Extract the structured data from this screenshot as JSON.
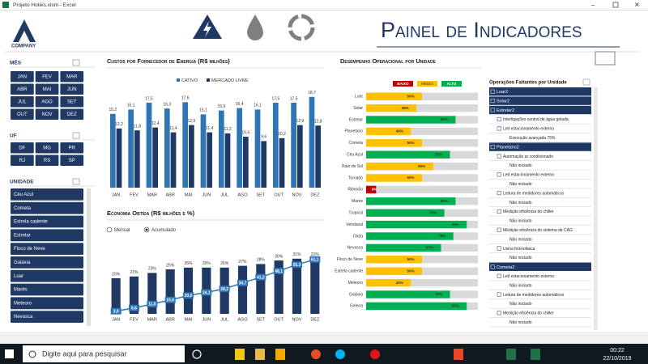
{
  "window": {
    "title": "Projeto Hotéis.xlsm - Excel"
  },
  "header": {
    "logo": "COMPANY",
    "title": "Painel de Indicadores"
  },
  "slicers": [
    {
      "title": "MÊS",
      "items": [
        "JAN",
        "FEV",
        "MAR",
        "ABR",
        "MAI",
        "JUN",
        "JUL",
        "AGO",
        "SET",
        "OUT",
        "NOV",
        "DEZ"
      ]
    },
    {
      "title": "UF",
      "items": [
        "DF",
        "MG",
        "PR",
        "RJ",
        "RS",
        "SP"
      ]
    },
    {
      "title": "UNIDADE",
      "items": [
        "Céu Azul",
        "Cometa",
        "Estrela cadente",
        "Estrelar",
        "Floco de Neve",
        "Galáxia",
        "Luar",
        "Marés",
        "Meteoro",
        "Nevasca"
      ]
    }
  ],
  "chart_data": [
    {
      "type": "bar",
      "title": "Custos por Fornecedor de Energia (R$ milhões)",
      "categories": [
        "JAN",
        "FEV",
        "MAR",
        "ABR",
        "MAI",
        "JUN",
        "JUL",
        "AGO",
        "SET",
        "OUT",
        "NOV",
        "DEZ"
      ],
      "ylim": [
        0,
        20
      ],
      "legend": "top",
      "series": [
        {
          "name": "CATIVO",
          "color": "#2e75b6",
          "values": [
            15.2,
            16.1,
            17.5,
            16.3,
            17.6,
            15.1,
            15.9,
            16.4,
            16.1,
            17.5,
            17.5,
            18.7
          ],
          "value_labels": [
            "15,2",
            "16,1",
            "17,5",
            "16,3",
            "17,6",
            "15,1",
            "15,9",
            "16,4",
            "16,1",
            "17,5",
            "17,5",
            "18,7"
          ]
        },
        {
          "name": "MERCADO LIVRE",
          "color": "#1f3864",
          "values": [
            12.2,
            11.8,
            12.4,
            11.4,
            12.9,
            11.4,
            11.2,
            10.5,
            9.6,
            10.2,
            12.9,
            12.8
          ],
          "value_labels": [
            "12,2",
            "11,8",
            "12,4",
            "11,4",
            "12,9",
            "11,4",
            "11,2",
            "10,5",
            "9,6",
            "10,2",
            "12,9",
            "12,8"
          ]
        }
      ]
    },
    {
      "type": "bar",
      "title": "Economia Obtida (R$ milhões e %)",
      "options": [
        "Mensal",
        "Acumulado"
      ],
      "selected": 1,
      "categories": [
        "JAN",
        "FEV",
        "MAR",
        "ABR",
        "MAI",
        "JUN",
        "JUL",
        "AGO",
        "SET",
        "OUT",
        "NOV",
        "DEZ"
      ],
      "ylim": [
        0,
        40
      ],
      "y2lim": [
        0,
        80
      ],
      "series": [
        {
          "type": "bar",
          "color": "#1f3864",
          "values": [
            20,
            21,
            23,
            25,
            26,
            26,
            26,
            27,
            28,
            30,
            31,
            31
          ],
          "value_labels": [
            "20%",
            "21%",
            "23%",
            "25%",
            "26%",
            "26%",
            "26%",
            "27%",
            "28%",
            "30%",
            "31%",
            "31%"
          ]
        },
        {
          "type": "line",
          "axis": "y2",
          "color": "#2e75b6",
          "values": [
            3.0,
            6.6,
            11.0,
            15.6,
            20.6,
            24.1,
            28.2,
            34.7,
            41.2,
            48.1,
            55.3,
            61.1
          ],
          "value_labels": [
            "3,0",
            "6,6",
            "11,0",
            "15,6",
            "20,6",
            "24,1",
            "28,2",
            "34,7",
            "41,2",
            "48,1",
            "55,3",
            "61,1"
          ]
        }
      ]
    },
    {
      "type": "hbar",
      "title": "Desempenho Operacional por Unidade",
      "xlim": [
        0,
        100
      ],
      "legend_items": [
        {
          "name": "BAIXO",
          "color": "#c00000"
        },
        {
          "name": "MÉDIO",
          "color": "#ffc000"
        },
        {
          "name": "ALTO",
          "color": "#00b050"
        }
      ],
      "categories": [
        "Luar",
        "Solar",
        "Estrelar",
        "Planetário",
        "Cometa",
        "Céu Azul",
        "Raio de Sol",
        "Tornado",
        "Ribeirão",
        "Marés",
        "Tropical",
        "Vendaval",
        "Onda",
        "Nevasca",
        "Floco de Neve",
        "Estrela cadente",
        "Meteoro",
        "Galáxia",
        "Geleira"
      ],
      "values": [
        50,
        45,
        80,
        40,
        50,
        75,
        60,
        50,
        9,
        80,
        70,
        90,
        78,
        67,
        50,
        50,
        40,
        75,
        90
      ],
      "value_labels": [
        "50%",
        "45%",
        "80%",
        "40%",
        "50%",
        "75%",
        "60%",
        "50%",
        "9%",
        "80%",
        "70%",
        "90%",
        "78%",
        "67%",
        "50%",
        "50%",
        "40%",
        "75%",
        "90%"
      ],
      "colors": [
        "#ffc000",
        "#ffc000",
        "#00b050",
        "#ffc000",
        "#ffc000",
        "#00b050",
        "#ffc000",
        "#ffc000",
        "#c00000",
        "#00b050",
        "#00b050",
        "#00b050",
        "#00b050",
        "#00b050",
        "#ffc000",
        "#ffc000",
        "#ffc000",
        "#00b050",
        "#00b050"
      ]
    }
  ],
  "pivot": {
    "title": "Operações Faltantes por Unidade",
    "units": [
      {
        "name": "Luar2",
        "operations": []
      },
      {
        "name": "Solar2",
        "operations": []
      },
      {
        "name": "Estrelar2",
        "operations": [
          {
            "name": "Interligações central de água gelada"
          },
          {
            "name": "Led estacionamento externo",
            "status": "Execução avançada 75%"
          }
        ]
      },
      {
        "name": "Planetário2",
        "operations": [
          {
            "name": "Automação ar condicionado",
            "status": "Não iniciado"
          },
          {
            "name": "Led estacionamento externo",
            "status": "Não iniciado"
          },
          {
            "name": "Leitura de medidores automáticos",
            "status": "Não iniciado"
          },
          {
            "name": "Medição eficiência do chiller",
            "status": "Não iniciado"
          },
          {
            "name": "Medição eficiência do sistema de CAG",
            "status": "Não iniciado"
          },
          {
            "name": "Usina fotovoltaica",
            "status": "Não iniciado"
          }
        ]
      },
      {
        "name": "Cometa2",
        "operations": [
          {
            "name": "Led estacionamento externo",
            "status": "Não iniciado"
          },
          {
            "name": "Leitura de medidores automáticos",
            "status": "Não iniciado"
          },
          {
            "name": "Medição eficiência do chiller",
            "status": "Não iniciado"
          }
        ]
      }
    ]
  },
  "taskbar": {
    "search": "Digite aqui para pesquisar",
    "time": "00:22",
    "date": "22/10/2019"
  }
}
